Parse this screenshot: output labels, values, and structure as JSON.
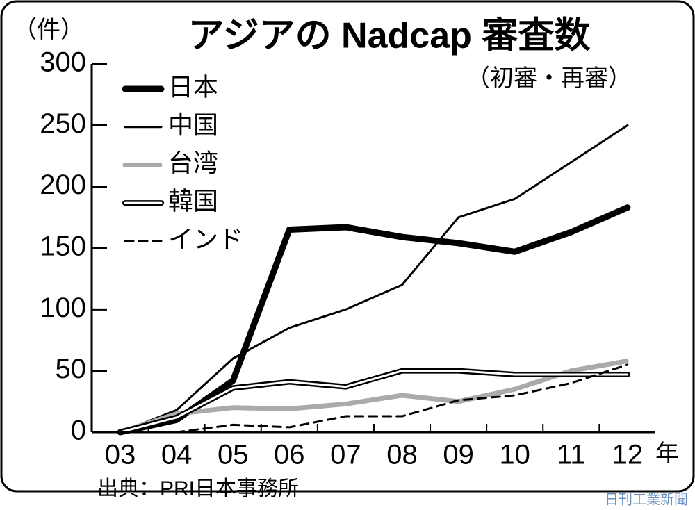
{
  "chart_data": {
    "type": "line",
    "title": "アジアの Nadcap 審査数",
    "subtitle": "（初審・再審）",
    "y_unit": "（件）",
    "x_unit": "年",
    "source": "出典：PRI日本事務所",
    "watermark": "日刊工業新聞",
    "categories": [
      "03",
      "04",
      "05",
      "06",
      "07",
      "08",
      "09",
      "10",
      "11",
      "12"
    ],
    "ylim": [
      0,
      300
    ],
    "yticks": [
      0,
      50,
      100,
      150,
      200,
      250,
      300
    ],
    "series": [
      {
        "name": "日本",
        "color": "#000000",
        "style": "thick",
        "values": [
          0,
          10,
          42,
          165,
          167,
          159,
          154,
          147,
          163,
          183
        ]
      },
      {
        "name": "中国",
        "color": "#000000",
        "style": "thin",
        "values": [
          0,
          18,
          60,
          85,
          100,
          120,
          175,
          190,
          220,
          250
        ]
      },
      {
        "name": "台湾",
        "color": "#aaaaaa",
        "style": "dotted",
        "values": [
          0,
          15,
          20,
          19,
          23,
          30,
          25,
          35,
          50,
          58
        ]
      },
      {
        "name": "韓国",
        "color": "#000000",
        "style": "double",
        "values": [
          0,
          12,
          36,
          41,
          37,
          50,
          50,
          47,
          47,
          47
        ]
      },
      {
        "name": "インド",
        "color": "#000000",
        "style": "dashed",
        "values": [
          0,
          0,
          6,
          4,
          13,
          13,
          26,
          30,
          40,
          55
        ]
      }
    ]
  }
}
